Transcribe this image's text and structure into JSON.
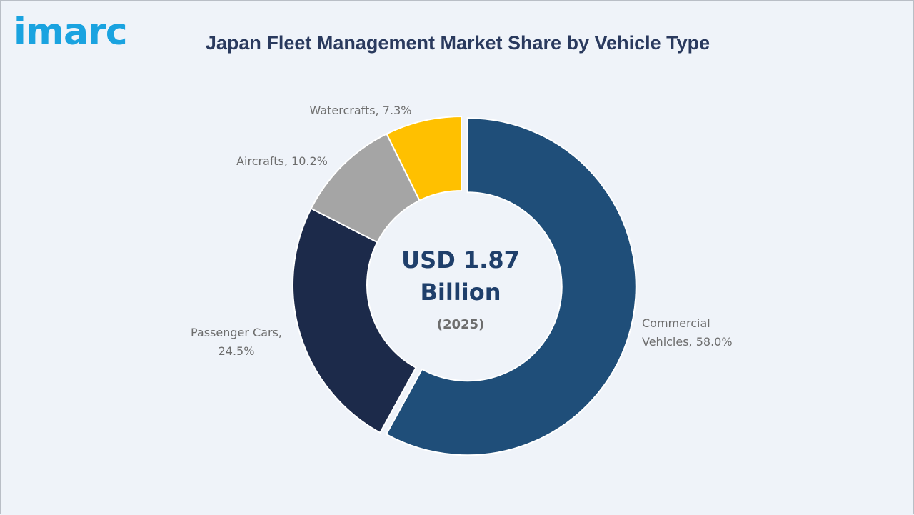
{
  "brand": {
    "logo_text": "imarc",
    "logo_color": "#1aa3e0"
  },
  "chart_data": {
    "type": "pie",
    "variant": "donut",
    "title": "Japan Fleet Management Market Share by Vehicle Type",
    "center_text": {
      "line1": "USD 1.87",
      "line2": "Billion",
      "line3": "(2025)"
    },
    "slices": [
      {
        "label": "Commercial Vehicles, 58.0%",
        "label_lines": [
          "Commercial",
          "Vehicles, 58.0%"
        ],
        "value": 58.0,
        "color": "#1f4e79",
        "exploded": true
      },
      {
        "label": "Passenger Cars, 24.5%",
        "label_lines": [
          "Passenger Cars,",
          "24.5%"
        ],
        "value": 24.5,
        "color": "#1c2a4a",
        "exploded": false
      },
      {
        "label": "Aircrafts, 10.2%",
        "label_lines": [
          "Aircrafts, 10.2%"
        ],
        "value": 10.2,
        "color": "#a5a5a5",
        "exploded": false
      },
      {
        "label": "Watercrafts, 7.3%",
        "label_lines": [
          "Watercrafts, 7.3%"
        ],
        "value": 7.3,
        "color": "#ffc000",
        "exploded": false
      }
    ]
  }
}
